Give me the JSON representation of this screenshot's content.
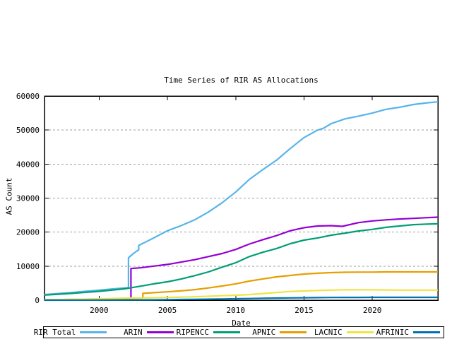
{
  "chart_data": {
    "type": "line",
    "title": "Time Series of RIR AS Allocations",
    "xlabel": "Date",
    "ylabel": "AS Count",
    "x_range": [
      1996.0,
      2024.8
    ],
    "y_range": [
      0,
      60000
    ],
    "x_ticks": [
      2000,
      2005,
      2010,
      2015,
      2020
    ],
    "y_ticks": [
      0,
      10000,
      20000,
      30000,
      40000,
      50000,
      60000
    ],
    "grid": "horizontal-dashed",
    "grid_color": "#9e9e9e",
    "border_color": "#000000",
    "legend_position": "bottom-outside-boxed",
    "series": [
      {
        "name": "RIR Total",
        "color": "#56b4e9",
        "points": [
          [
            1996,
            1650
          ],
          [
            1997,
            1950
          ],
          [
            1998,
            2250
          ],
          [
            1999,
            2600
          ],
          [
            2000,
            2950
          ],
          [
            2001,
            3300
          ],
          [
            2002.15,
            3700
          ],
          [
            2002.15,
            12450
          ],
          [
            2002.5,
            13700
          ],
          [
            2002.9,
            14800
          ],
          [
            2002.9,
            16100
          ],
          [
            2003.5,
            17300
          ],
          [
            2004,
            18300
          ],
          [
            2005,
            20400
          ],
          [
            2006,
            21900
          ],
          [
            2007,
            23600
          ],
          [
            2008,
            25900
          ],
          [
            2009,
            28600
          ],
          [
            2010,
            31800
          ],
          [
            2011,
            35500
          ],
          [
            2012,
            38400
          ],
          [
            2013,
            41200
          ],
          [
            2014,
            44600
          ],
          [
            2015,
            47800
          ],
          [
            2016,
            50000
          ],
          [
            2016.4,
            50500
          ],
          [
            2017,
            51900
          ],
          [
            2018,
            53300
          ],
          [
            2019,
            54100
          ],
          [
            2020,
            55000
          ],
          [
            2021,
            56100
          ],
          [
            2022,
            56700
          ],
          [
            2023,
            57500
          ],
          [
            2024,
            58000
          ],
          [
            2024.8,
            58300
          ]
        ]
      },
      {
        "name": "ARIN",
        "color": "#9400d3",
        "points": [
          [
            1996,
            60
          ],
          [
            1998,
            170
          ],
          [
            2000,
            300
          ],
          [
            2002.33,
            500
          ],
          [
            2002.33,
            9300
          ],
          [
            2003,
            9500
          ],
          [
            2004,
            10000
          ],
          [
            2005,
            10500
          ],
          [
            2006,
            11200
          ],
          [
            2007,
            11900
          ],
          [
            2008,
            12800
          ],
          [
            2009,
            13700
          ],
          [
            2010,
            14900
          ],
          [
            2011,
            16500
          ],
          [
            2012,
            17800
          ],
          [
            2013,
            19000
          ],
          [
            2014,
            20400
          ],
          [
            2015,
            21300
          ],
          [
            2016,
            21800
          ],
          [
            2017,
            21900
          ],
          [
            2017.8,
            21700
          ],
          [
            2019,
            22800
          ],
          [
            2020,
            23300
          ],
          [
            2021,
            23600
          ],
          [
            2022,
            23850
          ],
          [
            2023,
            24050
          ],
          [
            2024,
            24250
          ],
          [
            2024.8,
            24400
          ]
        ]
      },
      {
        "name": "RIPENCC",
        "color": "#009e73",
        "points": [
          [
            1996,
            1500
          ],
          [
            1997,
            1750
          ],
          [
            1998,
            2000
          ],
          [
            1999,
            2300
          ],
          [
            2000,
            2600
          ],
          [
            2001,
            3000
          ],
          [
            2002,
            3400
          ],
          [
            2003,
            4100
          ],
          [
            2004,
            4800
          ],
          [
            2005,
            5400
          ],
          [
            2006,
            6200
          ],
          [
            2007,
            7200
          ],
          [
            2008,
            8300
          ],
          [
            2009,
            9700
          ],
          [
            2010,
            11000
          ],
          [
            2011,
            12800
          ],
          [
            2012,
            14100
          ],
          [
            2013,
            15200
          ],
          [
            2014,
            16600
          ],
          [
            2015,
            17650
          ],
          [
            2016,
            18300
          ],
          [
            2017,
            19100
          ],
          [
            2018,
            19700
          ],
          [
            2019,
            20350
          ],
          [
            2020,
            20800
          ],
          [
            2021,
            21400
          ],
          [
            2022,
            21800
          ],
          [
            2023,
            22200
          ],
          [
            2024,
            22350
          ],
          [
            2024.8,
            22450
          ]
        ]
      },
      {
        "name": "APNIC",
        "color": "#e69f00",
        "points": [
          [
            1996,
            100
          ],
          [
            1998,
            220
          ],
          [
            2000,
            350
          ],
          [
            2002,
            500
          ],
          [
            2003.2,
            620
          ],
          [
            2003.2,
            2000
          ],
          [
            2004,
            2200
          ],
          [
            2005,
            2450
          ],
          [
            2006,
            2750
          ],
          [
            2007,
            3100
          ],
          [
            2008,
            3600
          ],
          [
            2009,
            4150
          ],
          [
            2010,
            4800
          ],
          [
            2011,
            5600
          ],
          [
            2012,
            6250
          ],
          [
            2013,
            6850
          ],
          [
            2014,
            7270
          ],
          [
            2015,
            7680
          ],
          [
            2016,
            7900
          ],
          [
            2017,
            8100
          ],
          [
            2018,
            8200
          ],
          [
            2019,
            8250
          ],
          [
            2020,
            8250
          ],
          [
            2021,
            8300
          ],
          [
            2022,
            8300
          ],
          [
            2023,
            8300
          ],
          [
            2024.8,
            8300
          ]
        ]
      },
      {
        "name": "LACNIC",
        "color": "#f0e442",
        "points": [
          [
            1996,
            100
          ],
          [
            1998,
            250
          ],
          [
            2000,
            400
          ],
          [
            2002,
            600
          ],
          [
            2004,
            700
          ],
          [
            2005,
            800
          ],
          [
            2006,
            900
          ],
          [
            2007,
            1000
          ],
          [
            2008,
            1150
          ],
          [
            2009,
            1300
          ],
          [
            2010,
            1450
          ],
          [
            2011,
            1650
          ],
          [
            2012,
            1950
          ],
          [
            2013,
            2250
          ],
          [
            2014,
            2550
          ],
          [
            2015,
            2700
          ],
          [
            2016,
            2850
          ],
          [
            2017,
            2950
          ],
          [
            2018,
            3050
          ],
          [
            2019,
            3050
          ],
          [
            2020,
            3050
          ],
          [
            2021,
            3000
          ],
          [
            2022,
            2950
          ],
          [
            2023,
            2950
          ],
          [
            2024.8,
            2950
          ]
        ]
      },
      {
        "name": "AFRINIC",
        "color": "#0072b2",
        "points": [
          [
            1996,
            0
          ],
          [
            2000,
            30
          ],
          [
            2004,
            80
          ],
          [
            2005,
            120
          ],
          [
            2006,
            200
          ],
          [
            2007,
            250
          ],
          [
            2008,
            300
          ],
          [
            2009,
            360
          ],
          [
            2010,
            420
          ],
          [
            2011,
            480
          ],
          [
            2012,
            560
          ],
          [
            2013,
            620
          ],
          [
            2014,
            670
          ],
          [
            2015,
            700
          ],
          [
            2016,
            750
          ],
          [
            2017,
            780
          ],
          [
            2018,
            800
          ],
          [
            2019,
            820
          ],
          [
            2020,
            830
          ],
          [
            2024.8,
            830
          ]
        ]
      }
    ]
  }
}
